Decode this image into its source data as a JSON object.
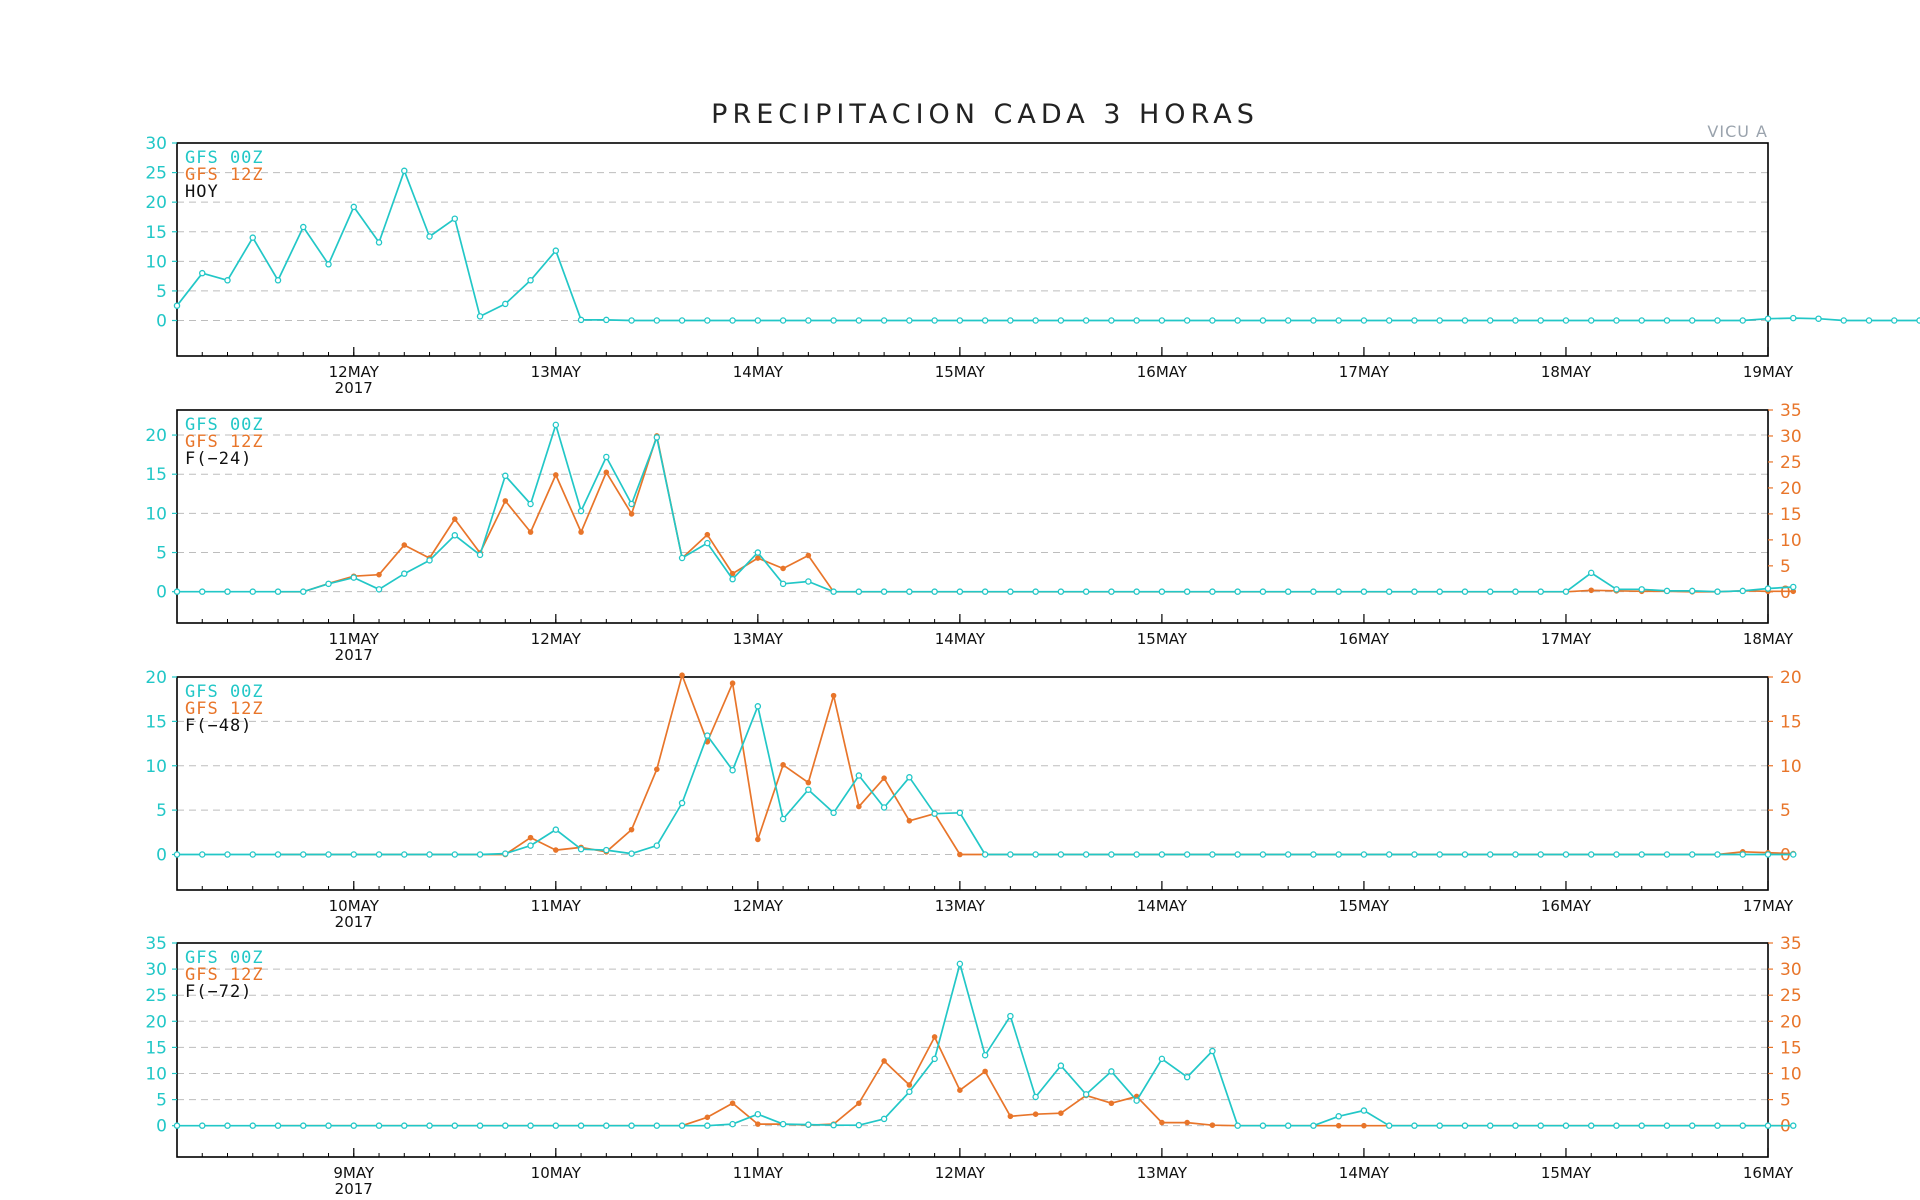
{
  "title": "PRECIPITACION CADA 3 HORAS",
  "station": "VICU A",
  "colors": {
    "gfs00": "#22c7c7",
    "gfs12": "#e8752a",
    "grid": "#bdbdbd",
    "axis": "#000000"
  },
  "chart_data": [
    {
      "type": "line",
      "panel_label": "HOY",
      "legend": [
        "GFS 00Z",
        "GFS 12Z"
      ],
      "x_start": "2017-05-11T03",
      "x_step_hours": 3,
      "xlim": [
        "2017-05-11T03",
        "2017-05-19T00"
      ],
      "x_tick_labels": [
        "12MAY",
        "13MAY",
        "14MAY",
        "15MAY",
        "16MAY",
        "17MAY",
        "18MAY",
        "19MAY"
      ],
      "x_tick_dates": [
        "2017-05-12",
        "2017-05-13",
        "2017-05-14",
        "2017-05-15",
        "2017-05-16",
        "2017-05-17",
        "2017-05-18",
        "2017-05-19"
      ],
      "year_label": "2017",
      "ylim_left": [
        -6,
        30
      ],
      "yticks_left": [
        0,
        5,
        10,
        15,
        20,
        25,
        30
      ],
      "right_axis": false,
      "series": [
        {
          "name": "GFS 00Z",
          "axis": "left",
          "start_index": 0,
          "values": [
            2.5,
            8,
            6.8,
            14,
            6.8,
            15.8,
            9.5,
            19.2,
            13.2,
            25.3,
            14.2,
            17.2,
            0.7,
            2.8,
            6.8,
            11.8,
            0.1,
            0.1,
            0,
            0,
            0,
            0,
            0,
            0,
            0,
            0,
            0,
            0,
            0,
            0,
            0,
            0,
            0,
            0,
            0,
            0,
            0,
            0,
            0,
            0,
            0,
            0,
            0,
            0,
            0,
            0,
            0,
            0,
            0,
            0,
            0,
            0,
            0,
            0,
            0,
            0,
            0,
            0,
            0,
            0,
            0,
            0,
            0,
            0.3,
            0.4,
            0.3,
            0,
            0,
            0,
            0,
            0,
            0,
            0,
            0
          ]
        }
      ]
    },
    {
      "type": "line",
      "panel_label": "F(−24)",
      "legend": [
        "GFS 00Z",
        "GFS 12Z"
      ],
      "x_start": "2017-05-10T03",
      "x_step_hours": 3,
      "xlim": [
        "2017-05-10T03",
        "2017-05-18T00"
      ],
      "x_tick_labels": [
        "11MAY",
        "12MAY",
        "13MAY",
        "14MAY",
        "15MAY",
        "16MAY",
        "17MAY",
        "18MAY"
      ],
      "x_tick_dates": [
        "2017-05-11",
        "2017-05-12",
        "2017-05-13",
        "2017-05-14",
        "2017-05-15",
        "2017-05-16",
        "2017-05-17",
        "2017-05-18"
      ],
      "year_label": "2017",
      "ylim_left": [
        -4,
        23.2
      ],
      "yticks_left": [
        0,
        5,
        10,
        15,
        20
      ],
      "right_axis": true,
      "ylim_right": [
        -6,
        35
      ],
      "yticks_right": [
        0,
        5,
        10,
        15,
        20,
        25,
        30,
        35
      ],
      "series": [
        {
          "name": "GFS 00Z",
          "axis": "left",
          "start_index": 0,
          "values": [
            0,
            0,
            0,
            0,
            0,
            0,
            1.0,
            1.8,
            0.3,
            2.3,
            4.0,
            7.2,
            4.7,
            14.8,
            11.2,
            21.3,
            10.3,
            17.2,
            11.2,
            19.7,
            4.3,
            6.2,
            1.6,
            5.0,
            1.0,
            1.3,
            0,
            0,
            0,
            0,
            0,
            0,
            0,
            0,
            0,
            0,
            0,
            0,
            0,
            0,
            0,
            0,
            0,
            0,
            0,
            0,
            0,
            0,
            0,
            0,
            0,
            0,
            0,
            0,
            0,
            0,
            2.4,
            0.3,
            0.3,
            0.1,
            0.1,
            0,
            0.1,
            0.4,
            0.6
          ]
        },
        {
          "name": "GFS 12Z",
          "axis": "right",
          "start_index": 4,
          "values": [
            0,
            0,
            1.6,
            3.0,
            3.3,
            9.0,
            6.5,
            14.0,
            7.5,
            17.5,
            11.5,
            22.5,
            11.5,
            23.0,
            15.0,
            30.0,
            6.5,
            11.0,
            3.5,
            6.5,
            4.5,
            7.0,
            0,
            0,
            0,
            0,
            0,
            0,
            0,
            0,
            0,
            0,
            0,
            0,
            0,
            0,
            0,
            0,
            0,
            0,
            0,
            0,
            0,
            0,
            0,
            0,
            0,
            0,
            0,
            0,
            0,
            0,
            0.3,
            0.2,
            0.1,
            0.1,
            0,
            0,
            0.2,
            0.1,
            0.1
          ]
        }
      ]
    },
    {
      "type": "line",
      "panel_label": "F(−48)",
      "legend": [
        "GFS 00Z",
        "GFS 12Z"
      ],
      "x_start": "2017-05-09T03",
      "x_step_hours": 3,
      "xlim": [
        "2017-05-09T03",
        "2017-05-17T00"
      ],
      "x_tick_labels": [
        "10MAY",
        "11MAY",
        "12MAY",
        "13MAY",
        "14MAY",
        "15MAY",
        "16MAY",
        "17MAY"
      ],
      "x_tick_dates": [
        "2017-05-10",
        "2017-05-11",
        "2017-05-12",
        "2017-05-13",
        "2017-05-14",
        "2017-05-15",
        "2017-05-16",
        "2017-05-17"
      ],
      "year_label": "2017",
      "ylim_left": [
        -4,
        20
      ],
      "yticks_left": [
        0,
        5,
        10,
        15,
        20
      ],
      "right_axis": true,
      "ylim_right": [
        -4,
        20
      ],
      "yticks_right": [
        0,
        5,
        10,
        15,
        20
      ],
      "series": [
        {
          "name": "GFS 00Z",
          "axis": "left",
          "start_index": 0,
          "values": [
            0,
            0,
            0,
            0,
            0,
            0,
            0,
            0,
            0,
            0,
            0,
            0,
            0,
            0.1,
            1.0,
            2.8,
            0.6,
            0.5,
            0.1,
            1.0,
            5.8,
            13.4,
            9.5,
            16.7,
            4.0,
            7.3,
            4.7,
            8.9,
            5.3,
            8.7,
            4.6,
            4.7,
            0,
            0,
            0,
            0,
            0,
            0,
            0,
            0,
            0,
            0,
            0,
            0,
            0,
            0,
            0,
            0,
            0,
            0,
            0,
            0,
            0,
            0,
            0,
            0,
            0,
            0,
            0,
            0,
            0,
            0,
            0,
            0,
            0
          ]
        },
        {
          "name": "GFS 12Z",
          "axis": "right",
          "start_index": 4,
          "values": [
            0,
            0,
            0,
            0,
            0,
            0,
            0,
            0,
            0,
            0,
            1.9,
            0.5,
            0.8,
            0.3,
            2.8,
            9.6,
            20.2,
            12.7,
            19.3,
            1.7,
            10.1,
            8.1,
            17.9,
            5.4,
            8.6,
            3.8,
            4.6,
            0,
            0,
            0,
            0,
            0,
            0,
            0,
            0,
            0,
            0,
            0,
            0,
            0,
            0,
            0,
            0,
            0,
            0,
            0,
            0,
            0,
            0,
            0,
            0,
            0,
            0,
            0,
            0,
            0,
            0,
            0,
            0.3,
            0.2,
            0.1
          ]
        }
      ]
    },
    {
      "type": "line",
      "panel_label": "F(−72)",
      "legend": [
        "GFS 00Z",
        "GFS 12Z"
      ],
      "x_start": "2017-05-08T03",
      "x_step_hours": 3,
      "xlim": [
        "2017-05-08T03",
        "2017-05-16T00"
      ],
      "x_tick_labels": [
        "9MAY",
        "10MAY",
        "11MAY",
        "12MAY",
        "13MAY",
        "14MAY",
        "15MAY",
        "16MAY"
      ],
      "x_tick_dates": [
        "2017-05-09",
        "2017-05-10",
        "2017-05-11",
        "2017-05-12",
        "2017-05-13",
        "2017-05-14",
        "2017-05-15",
        "2017-05-16"
      ],
      "year_label": "2017",
      "ylim_left": [
        -6,
        35
      ],
      "yticks_left": [
        0,
        5,
        10,
        15,
        20,
        25,
        30,
        35
      ],
      "right_axis": true,
      "ylim_right": [
        -6,
        35
      ],
      "yticks_right": [
        0,
        5,
        10,
        15,
        20,
        25,
        30,
        35
      ],
      "series": [
        {
          "name": "GFS 00Z",
          "axis": "left",
          "start_index": 0,
          "values": [
            0,
            0,
            0,
            0,
            0,
            0,
            0,
            0,
            0,
            0,
            0,
            0,
            0,
            0,
            0,
            0,
            0,
            0,
            0,
            0,
            0,
            0,
            0.3,
            2.2,
            0.3,
            0.2,
            0.1,
            0.1,
            1.3,
            6.5,
            12.8,
            31.0,
            13.5,
            21.0,
            5.5,
            11.5,
            6.0,
            10.4,
            4.8,
            12.8,
            9.3,
            14.3,
            0,
            0,
            0,
            0,
            1.8,
            2.9,
            0,
            0,
            0,
            0,
            0,
            0,
            0,
            0,
            0,
            0,
            0,
            0,
            0,
            0,
            0,
            0,
            0
          ]
        },
        {
          "name": "GFS 12Z",
          "axis": "right",
          "start_index": 4,
          "values": [
            0,
            0,
            0,
            0,
            0,
            0,
            0,
            0,
            0,
            0,
            0,
            0,
            0,
            0,
            0,
            0,
            0,
            1.6,
            4.3,
            0.3,
            0.3,
            0.1,
            0.3,
            4.3,
            12.4,
            7.8,
            17.0,
            6.8,
            10.4,
            1.8,
            2.2,
            2.4,
            5.8,
            4.3,
            5.6,
            0.6,
            0.6,
            0.1,
            0,
            0,
            0,
            0,
            0,
            0,
            0,
            0,
            0,
            0,
            0,
            0,
            0,
            0,
            0,
            0,
            0,
            0,
            0,
            0,
            0,
            0,
            0
          ]
        }
      ]
    }
  ]
}
